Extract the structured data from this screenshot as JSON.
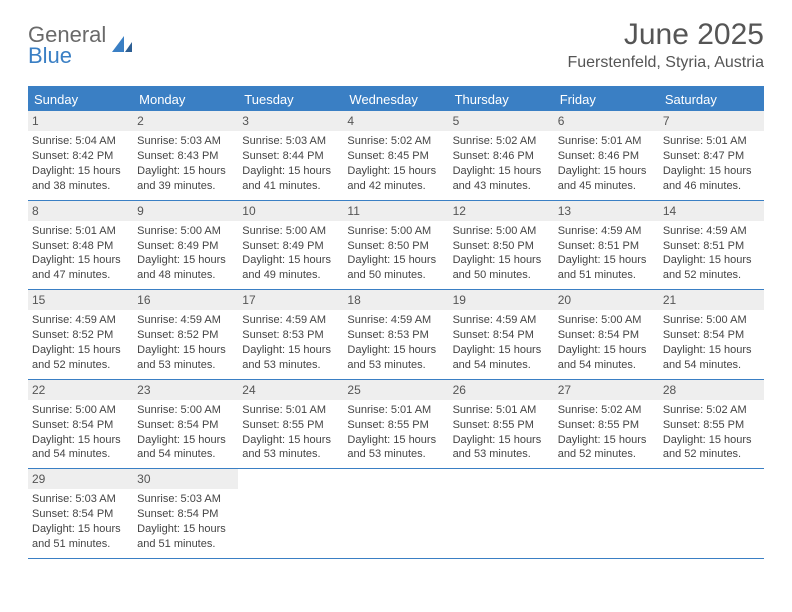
{
  "logo": {
    "word1": "General",
    "word2": "Blue"
  },
  "header": {
    "title": "June 2025",
    "location": "Fuerstenfeld, Styria, Austria"
  },
  "colors": {
    "accent": "#3a7fc4",
    "header_bg": "#3a7fc4",
    "daynum_bg": "#eeeeee",
    "text": "#444444",
    "title_text": "#555555"
  },
  "daynames": [
    "Sunday",
    "Monday",
    "Tuesday",
    "Wednesday",
    "Thursday",
    "Friday",
    "Saturday"
  ],
  "weeks": [
    [
      {
        "n": "1",
        "sr": "5:04 AM",
        "ss": "8:42 PM",
        "dh": "15",
        "dm": "38"
      },
      {
        "n": "2",
        "sr": "5:03 AM",
        "ss": "8:43 PM",
        "dh": "15",
        "dm": "39"
      },
      {
        "n": "3",
        "sr": "5:03 AM",
        "ss": "8:44 PM",
        "dh": "15",
        "dm": "41"
      },
      {
        "n": "4",
        "sr": "5:02 AM",
        "ss": "8:45 PM",
        "dh": "15",
        "dm": "42"
      },
      {
        "n": "5",
        "sr": "5:02 AM",
        "ss": "8:46 PM",
        "dh": "15",
        "dm": "43"
      },
      {
        "n": "6",
        "sr": "5:01 AM",
        "ss": "8:46 PM",
        "dh": "15",
        "dm": "45"
      },
      {
        "n": "7",
        "sr": "5:01 AM",
        "ss": "8:47 PM",
        "dh": "15",
        "dm": "46"
      }
    ],
    [
      {
        "n": "8",
        "sr": "5:01 AM",
        "ss": "8:48 PM",
        "dh": "15",
        "dm": "47"
      },
      {
        "n": "9",
        "sr": "5:00 AM",
        "ss": "8:49 PM",
        "dh": "15",
        "dm": "48"
      },
      {
        "n": "10",
        "sr": "5:00 AM",
        "ss": "8:49 PM",
        "dh": "15",
        "dm": "49"
      },
      {
        "n": "11",
        "sr": "5:00 AM",
        "ss": "8:50 PM",
        "dh": "15",
        "dm": "50"
      },
      {
        "n": "12",
        "sr": "5:00 AM",
        "ss": "8:50 PM",
        "dh": "15",
        "dm": "50"
      },
      {
        "n": "13",
        "sr": "4:59 AM",
        "ss": "8:51 PM",
        "dh": "15",
        "dm": "51"
      },
      {
        "n": "14",
        "sr": "4:59 AM",
        "ss": "8:51 PM",
        "dh": "15",
        "dm": "52"
      }
    ],
    [
      {
        "n": "15",
        "sr": "4:59 AM",
        "ss": "8:52 PM",
        "dh": "15",
        "dm": "52"
      },
      {
        "n": "16",
        "sr": "4:59 AM",
        "ss": "8:52 PM",
        "dh": "15",
        "dm": "53"
      },
      {
        "n": "17",
        "sr": "4:59 AM",
        "ss": "8:53 PM",
        "dh": "15",
        "dm": "53"
      },
      {
        "n": "18",
        "sr": "4:59 AM",
        "ss": "8:53 PM",
        "dh": "15",
        "dm": "53"
      },
      {
        "n": "19",
        "sr": "4:59 AM",
        "ss": "8:54 PM",
        "dh": "15",
        "dm": "54"
      },
      {
        "n": "20",
        "sr": "5:00 AM",
        "ss": "8:54 PM",
        "dh": "15",
        "dm": "54"
      },
      {
        "n": "21",
        "sr": "5:00 AM",
        "ss": "8:54 PM",
        "dh": "15",
        "dm": "54"
      }
    ],
    [
      {
        "n": "22",
        "sr": "5:00 AM",
        "ss": "8:54 PM",
        "dh": "15",
        "dm": "54"
      },
      {
        "n": "23",
        "sr": "5:00 AM",
        "ss": "8:54 PM",
        "dh": "15",
        "dm": "54"
      },
      {
        "n": "24",
        "sr": "5:01 AM",
        "ss": "8:55 PM",
        "dh": "15",
        "dm": "53"
      },
      {
        "n": "25",
        "sr": "5:01 AM",
        "ss": "8:55 PM",
        "dh": "15",
        "dm": "53"
      },
      {
        "n": "26",
        "sr": "5:01 AM",
        "ss": "8:55 PM",
        "dh": "15",
        "dm": "53"
      },
      {
        "n": "27",
        "sr": "5:02 AM",
        "ss": "8:55 PM",
        "dh": "15",
        "dm": "52"
      },
      {
        "n": "28",
        "sr": "5:02 AM",
        "ss": "8:55 PM",
        "dh": "15",
        "dm": "52"
      }
    ],
    [
      {
        "n": "29",
        "sr": "5:03 AM",
        "ss": "8:54 PM",
        "dh": "15",
        "dm": "51"
      },
      {
        "n": "30",
        "sr": "5:03 AM",
        "ss": "8:54 PM",
        "dh": "15",
        "dm": "51"
      },
      null,
      null,
      null,
      null,
      null
    ]
  ],
  "labels": {
    "sunrise": "Sunrise:",
    "sunset": "Sunset:",
    "daylight_prefix": "Daylight:",
    "hours_word": "hours",
    "and_word": "and",
    "minutes_word": "minutes."
  }
}
